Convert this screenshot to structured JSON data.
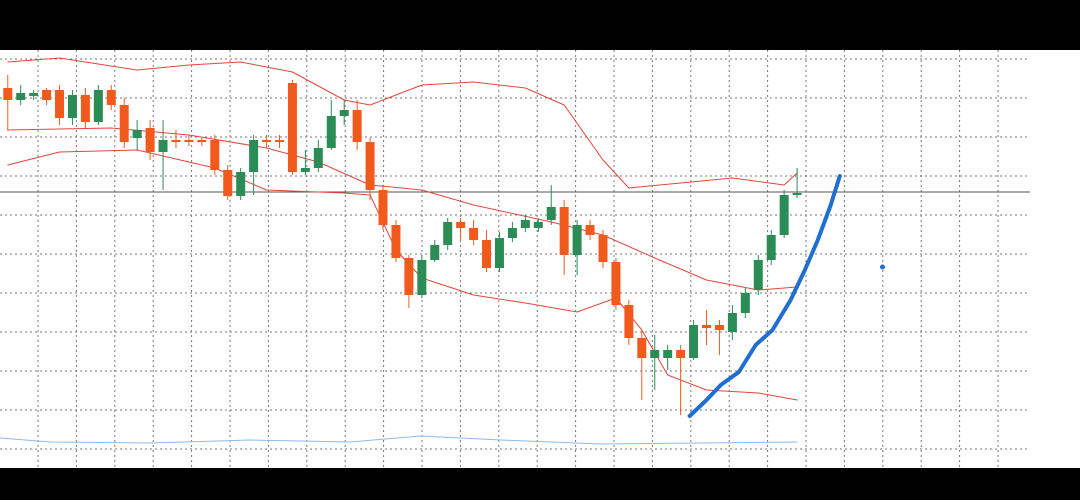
{
  "chart_data": {
    "type": "candlestick",
    "ylim": [
      0,
      418
    ],
    "xlim": [
      -0.6,
      79
    ],
    "grid": true,
    "up_color": "#2b8c55",
    "down_color": "#f25a1d",
    "open": [
      380,
      368,
      372,
      378,
      378,
      350,
      373,
      346,
      378,
      363,
      330,
      340,
      316,
      328,
      328,
      328,
      328,
      298,
      272,
      296,
      328,
      328,
      385,
      296,
      300,
      320,
      352,
      358,
      326,
      278,
      243,
      210,
      173,
      208,
      223,
      246,
      240,
      228,
      200,
      230,
      240,
      240,
      248,
      261,
      213,
      243,
      233,
      206,
      163,
      130,
      110,
      110,
      118,
      110,
      143,
      143,
      136,
      155,
      178,
      208,
      233,
      273
    ],
    "close": [
      368,
      375,
      375,
      368,
      350,
      373,
      346,
      378,
      363,
      326,
      338,
      316,
      328,
      326,
      326,
      326,
      298,
      272,
      296,
      328,
      326,
      326,
      296,
      300,
      320,
      352,
      358,
      326,
      278,
      243,
      210,
      173,
      208,
      223,
      246,
      240,
      228,
      200,
      230,
      240,
      248,
      246,
      261,
      213,
      243,
      233,
      206,
      163,
      130,
      110,
      118,
      118,
      110,
      143,
      140,
      138,
      155,
      175,
      208,
      233,
      273,
      275
    ],
    "high": [
      393,
      383,
      378,
      380,
      383,
      378,
      380,
      383,
      383,
      370,
      348,
      348,
      348,
      338,
      333,
      330,
      333,
      303,
      300,
      333,
      333,
      333,
      388,
      318,
      328,
      368,
      368,
      368,
      330,
      283,
      248,
      213,
      213,
      228,
      250,
      250,
      248,
      238,
      236,
      246,
      253,
      250,
      283,
      268,
      248,
      248,
      238,
      210,
      168,
      138,
      133,
      123,
      123,
      148,
      158,
      148,
      163,
      180,
      213,
      238,
      278,
      300
    ],
    "low": [
      338,
      363,
      368,
      363,
      343,
      343,
      340,
      343,
      358,
      320,
      318,
      308,
      278,
      320,
      322,
      322,
      293,
      268,
      268,
      273,
      320,
      320,
      293,
      293,
      296,
      318,
      343,
      318,
      268,
      238,
      206,
      160,
      170,
      206,
      218,
      228,
      223,
      196,
      196,
      226,
      236,
      236,
      243,
      193,
      193,
      228,
      200,
      158,
      123,
      68,
      78,
      98,
      53,
      108,
      123,
      113,
      128,
      150,
      173,
      203,
      230,
      270
    ],
    "bands": [
      {
        "color": "#e2473d",
        "x": [
          0,
          4,
          10,
          14,
          18,
          22,
          26,
          28,
          32,
          36,
          40,
          43,
          46,
          48,
          52,
          56,
          60,
          61
        ],
        "values": [
          406,
          410,
          398,
          403,
          406,
          396,
          368,
          363,
          383,
          386,
          380,
          363,
          308,
          280,
          285,
          290,
          283,
          295
        ]
      },
      {
        "color": "#e2473d",
        "x": [
          0,
          8,
          14,
          20,
          24,
          28,
          32,
          36,
          42,
          46,
          50,
          54,
          58,
          61
        ],
        "values": [
          338,
          340,
          333,
          320,
          306,
          283,
          278,
          263,
          246,
          233,
          210,
          188,
          178,
          181
        ]
      },
      {
        "color": "#e2473d",
        "x": [
          0,
          4,
          10,
          16,
          20,
          26,
          28,
          30,
          32,
          36,
          40,
          44,
          47,
          49,
          51,
          54,
          58,
          61
        ],
        "values": [
          303,
          316,
          318,
          300,
          278,
          275,
          273,
          218,
          190,
          173,
          165,
          156,
          170,
          138,
          93,
          78,
          75,
          68
        ]
      }
    ],
    "hline": 276,
    "hline_color": "#555555",
    "drawing": {
      "color": "#1f6fd1",
      "x": [
        52.7,
        54.0,
        55.1,
        56.5,
        57.8,
        59.1,
        60.5,
        61.6,
        62.6,
        63.6,
        64.3
      ],
      "values": [
        52,
        68,
        83,
        96,
        123,
        138,
        168,
        198,
        228,
        263,
        292
      ]
    },
    "dot": {
      "color": "#1f6fd1",
      "x": 67.6,
      "value": 201
    },
    "indicator": {
      "color": "#8fbbe8",
      "x": [
        -0.6,
        3.3,
        11.0,
        18.7,
        26.5,
        31.9,
        38.1,
        45.8,
        53.5,
        61.0
      ],
      "values": [
        30,
        26,
        25,
        28,
        26,
        32,
        28,
        24,
        25,
        26
      ]
    }
  }
}
